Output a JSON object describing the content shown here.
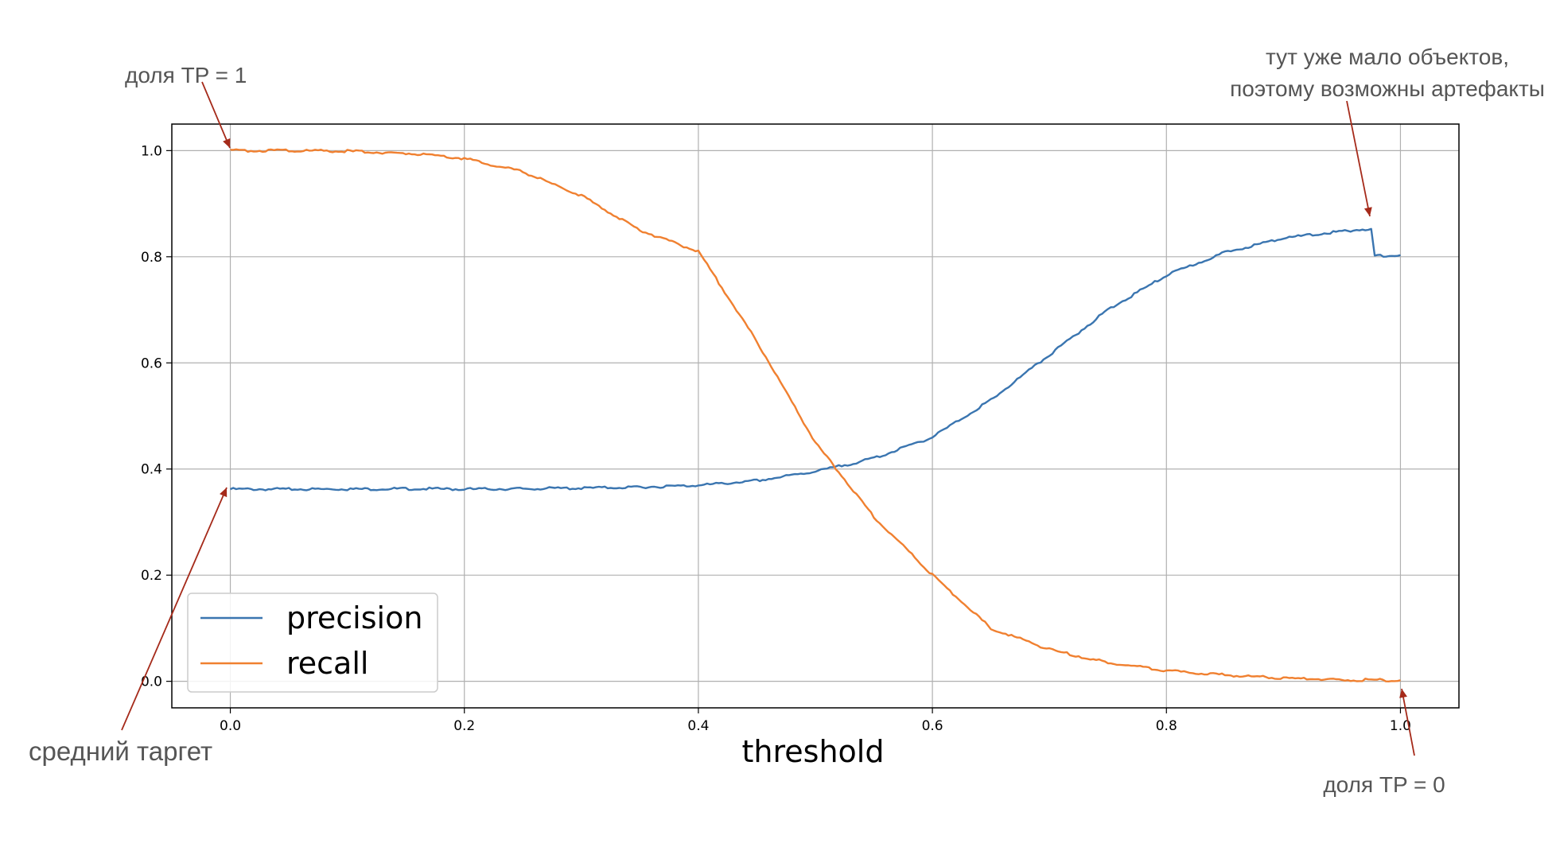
{
  "chart_data": {
    "type": "line",
    "xlabel": "threshold",
    "ylabel": "",
    "xlim": [
      -0.05,
      1.05
    ],
    "ylim": [
      -0.05,
      1.05
    ],
    "xticks": [
      "0.0",
      "0.2",
      "0.4",
      "0.6",
      "0.8",
      "1.0"
    ],
    "yticks": [
      "0.0",
      "0.2",
      "0.4",
      "0.6",
      "0.8",
      "1.0"
    ],
    "grid": true,
    "legend_position": "bottom-left",
    "series": [
      {
        "name": "precision",
        "color": "#3a75b0",
        "x": [
          0.0,
          0.05,
          0.1,
          0.15,
          0.2,
          0.25,
          0.3,
          0.35,
          0.4,
          0.45,
          0.5,
          0.55,
          0.6,
          0.65,
          0.7,
          0.75,
          0.8,
          0.85,
          0.9,
          0.95,
          0.975,
          0.978,
          1.0
        ],
        "values": [
          0.362,
          0.362,
          0.362,
          0.363,
          0.362,
          0.363,
          0.364,
          0.366,
          0.369,
          0.378,
          0.395,
          0.42,
          0.46,
          0.53,
          0.615,
          0.7,
          0.765,
          0.808,
          0.835,
          0.848,
          0.853,
          0.802,
          0.803
        ]
      },
      {
        "name": "recall",
        "color": "#f08030",
        "x": [
          0.0,
          0.05,
          0.1,
          0.15,
          0.2,
          0.25,
          0.3,
          0.35,
          0.4,
          0.45,
          0.5,
          0.55,
          0.6,
          0.65,
          0.7,
          0.75,
          0.8,
          0.85,
          0.9,
          0.95,
          1.0
        ],
        "values": [
          1.0,
          1.0,
          0.999,
          0.995,
          0.985,
          0.96,
          0.915,
          0.85,
          0.81,
          0.64,
          0.45,
          0.31,
          0.2,
          0.1,
          0.06,
          0.035,
          0.02,
          0.012,
          0.006,
          0.003,
          0.002
        ]
      }
    ]
  },
  "annotations": {
    "top_left": "доля TP = 1",
    "top_right_line1": "тут уже мало объектов,",
    "top_right_line2": "поэтому возможны артефакты",
    "bottom_left": "средний таргет",
    "bottom_right": "доля TP = 0",
    "arrow_color": "#a52a1a",
    "text_color": "#555555"
  }
}
